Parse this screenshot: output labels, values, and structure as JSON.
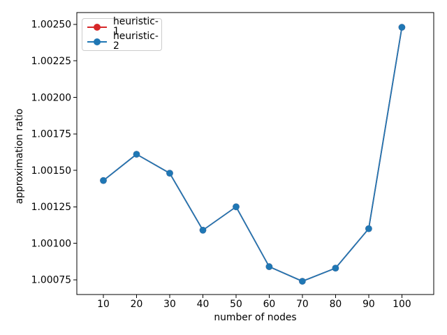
{
  "figure": {
    "background": "#ffffff"
  },
  "chart_data": {
    "type": "line",
    "title": "",
    "xlabel": "number of nodes",
    "ylabel": "approximation ratio",
    "x": [
      10,
      20,
      30,
      40,
      50,
      60,
      70,
      80,
      90,
      100
    ],
    "series": [
      {
        "name": "heuristic-1",
        "color": "#d62728",
        "marker": "circle",
        "values": [
          1.00143,
          1.00161,
          1.00148,
          1.00109,
          1.00125,
          1.00084,
          1.00074,
          1.00083,
          1.0011,
          1.00248
        ]
      },
      {
        "name": "heuristic-2",
        "color": "#1f77b4",
        "marker": "circle",
        "values": [
          1.00143,
          1.00161,
          1.00148,
          1.00109,
          1.00125,
          1.00084,
          1.00074,
          1.00083,
          1.0011,
          1.00248
        ]
      }
    ],
    "xticks": [
      10,
      20,
      30,
      40,
      50,
      60,
      70,
      80,
      90,
      100
    ],
    "xtick_labels": [
      "10",
      "20",
      "30",
      "40",
      "50",
      "60",
      "70",
      "80",
      "90",
      "100"
    ],
    "yticks": [
      1.00075,
      1.001,
      1.00125,
      1.0015,
      1.00175,
      1.002,
      1.00225,
      1.0025
    ],
    "ytick_labels": [
      "1.00075",
      "1.00100",
      "1.00125",
      "1.00150",
      "1.00175",
      "1.00200",
      "1.00225",
      "1.00250"
    ],
    "xlim": [
      2.0,
      109.6
    ],
    "ylim": [
      1.000649,
      1.002581
    ],
    "grid": false,
    "legend": {
      "position": "upper left",
      "entries": [
        "heuristic-1",
        "heuristic-2"
      ]
    }
  }
}
